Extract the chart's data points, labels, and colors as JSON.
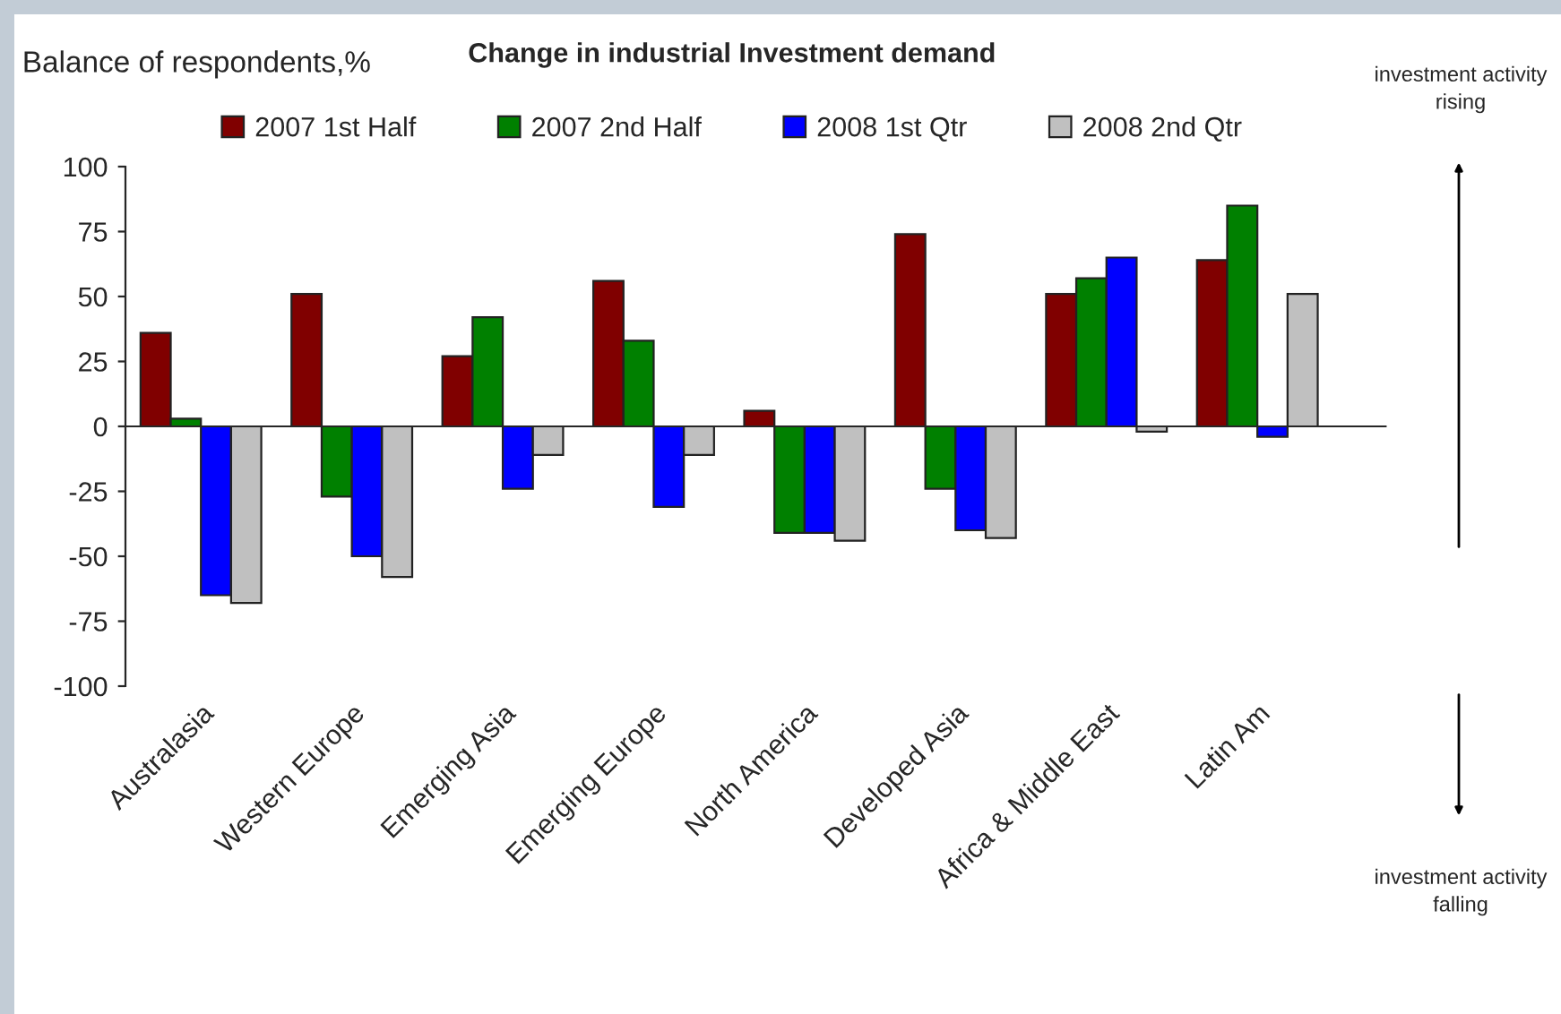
{
  "chart_data": {
    "type": "bar",
    "title": "Change in industrial Investment demand",
    "ylabel": "Balance of respondents,%",
    "categories": [
      "Australasia",
      "Western Europe",
      "Emerging Asia",
      "Emerging Europe",
      "North America",
      "Developed Asia",
      "Africa & Middle East",
      "Latin Am"
    ],
    "series": [
      {
        "name": "2007 1st Half",
        "color": "#800000",
        "values": [
          36,
          51,
          27,
          56,
          6,
          74,
          51,
          64
        ]
      },
      {
        "name": "2007 2nd Half",
        "color": "#008000",
        "values": [
          3,
          -27,
          42,
          33,
          -41,
          -24,
          57,
          85
        ]
      },
      {
        "name": "2008 1st Qtr",
        "color": "#0000ff",
        "values": [
          -65,
          -50,
          -24,
          -31,
          -41,
          -40,
          65,
          -4
        ]
      },
      {
        "name": "2008 2nd Qtr",
        "color": "#c0c0c0",
        "values": [
          -68,
          -58,
          -11,
          -11,
          -44,
          -43,
          -2,
          51
        ]
      }
    ],
    "ylim": [
      -100,
      100
    ],
    "yticks": [
      -100,
      -75,
      -50,
      -25,
      0,
      25,
      50,
      75,
      100
    ],
    "legend": "top",
    "annotations": [
      "investment activity rising",
      "investment activity falling"
    ]
  }
}
